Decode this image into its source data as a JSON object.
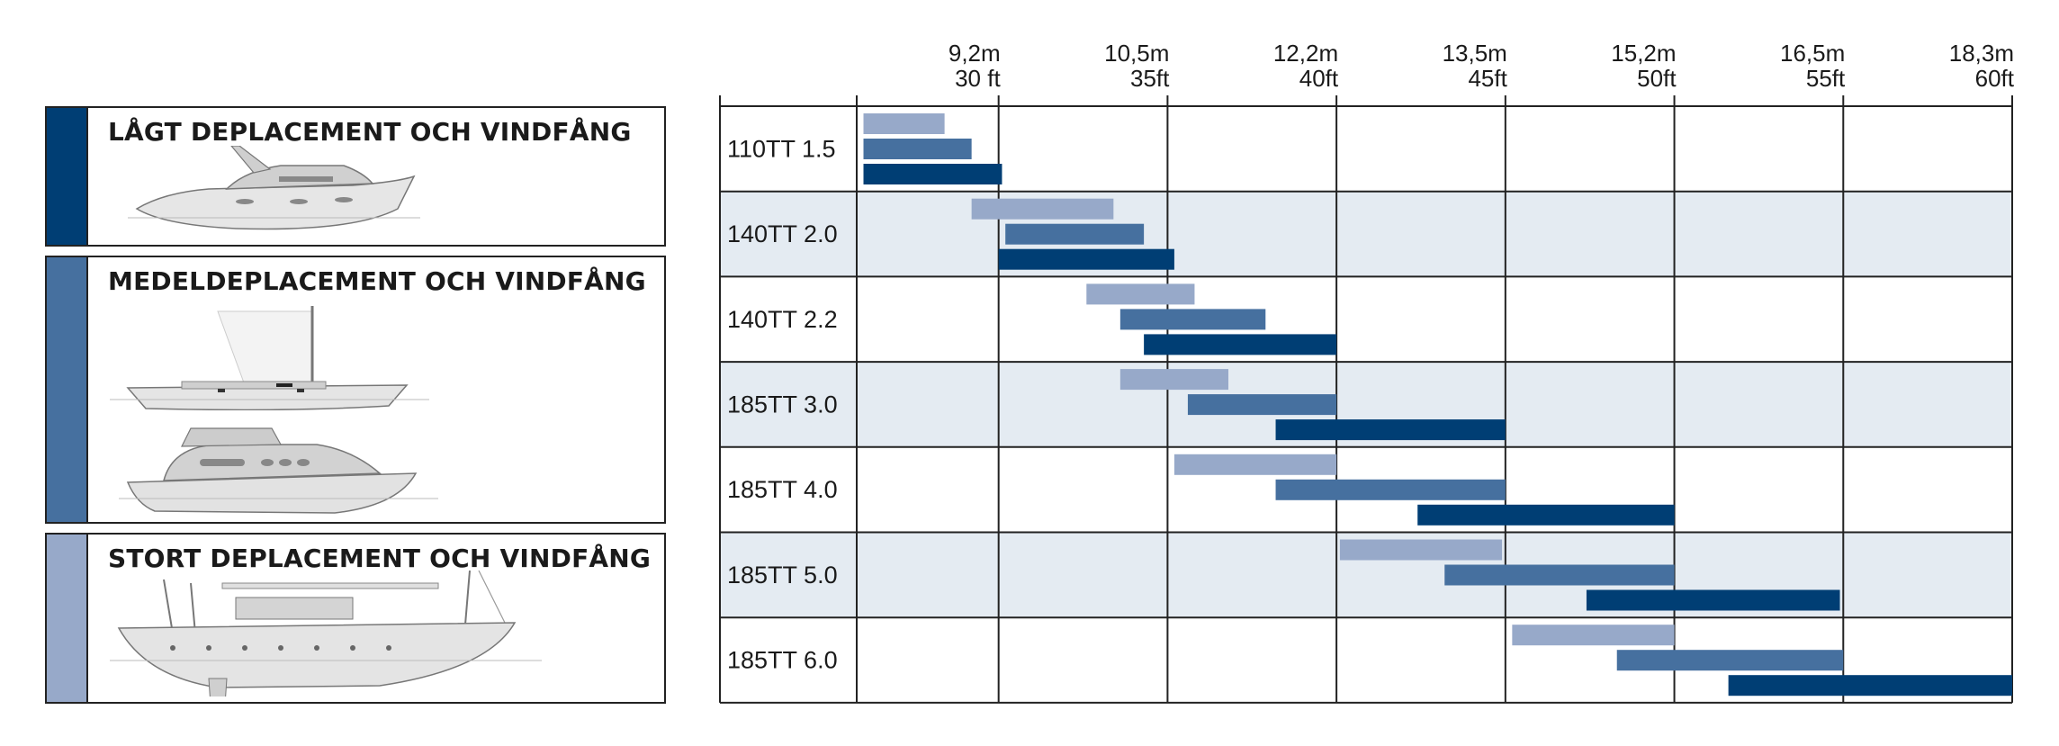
{
  "legend": [
    {
      "label": "LÅGT DEPLACEMENT OCH VINDFÅNG",
      "color": "#003e74"
    },
    {
      "label": "MEDELDEPLACEMENT OCH VINDFÅNG",
      "color": "#46709f"
    },
    {
      "label": "STORT DEPLACEMENT OCH VINDFÅNG",
      "color": "#97a9c9"
    }
  ],
  "chart_data": {
    "type": "bar",
    "orientation": "horizontal-range",
    "x_unit": "ft",
    "xlim": [
      25.8,
      60
    ],
    "ticks": [
      {
        "value": 30,
        "metric": "9,2m",
        "imperial": "30 ft"
      },
      {
        "value": 35,
        "metric": "10,5m",
        "imperial": "35ft"
      },
      {
        "value": 40,
        "metric": "12,2m",
        "imperial": "40ft"
      },
      {
        "value": 45,
        "metric": "13,5m",
        "imperial": "45ft"
      },
      {
        "value": 50,
        "metric": "15,2m",
        "imperial": "50ft"
      },
      {
        "value": 55,
        "metric": "16,5m",
        "imperial": "55ft"
      },
      {
        "value": 60,
        "metric": "18,3m",
        "imperial": "60ft"
      }
    ],
    "categories": [
      "110TT 1.5",
      "140TT 2.0",
      "140TT 2.2",
      "185TT 3.0",
      "185TT 4.0",
      "185TT 5.0",
      "185TT 6.0"
    ],
    "series": [
      {
        "legend_index": 2,
        "color": "#97a9c9",
        "ranges": [
          [
            26,
            28.4
          ],
          [
            29.2,
            33.4
          ],
          [
            32.6,
            35.8
          ],
          [
            33.6,
            36.8
          ],
          [
            35.2,
            40
          ],
          [
            40.1,
            44.9
          ],
          [
            45.2,
            50
          ]
        ]
      },
      {
        "legend_index": 1,
        "color": "#46709f",
        "ranges": [
          [
            26,
            29.2
          ],
          [
            30.2,
            34.3
          ],
          [
            33.6,
            37.9
          ],
          [
            35.6,
            40
          ],
          [
            38.2,
            45
          ],
          [
            43.2,
            50
          ],
          [
            48.3,
            55
          ]
        ]
      },
      {
        "legend_index": 0,
        "color": "#003e74",
        "ranges": [
          [
            26,
            30.1
          ],
          [
            30,
            35.2
          ],
          [
            34.3,
            40
          ],
          [
            38.2,
            45
          ],
          [
            42.4,
            50
          ],
          [
            47.4,
            54.9
          ],
          [
            51.6,
            60
          ]
        ]
      }
    ],
    "row_shading": [
      "#ffffff",
      "#e4ebf2"
    ]
  }
}
